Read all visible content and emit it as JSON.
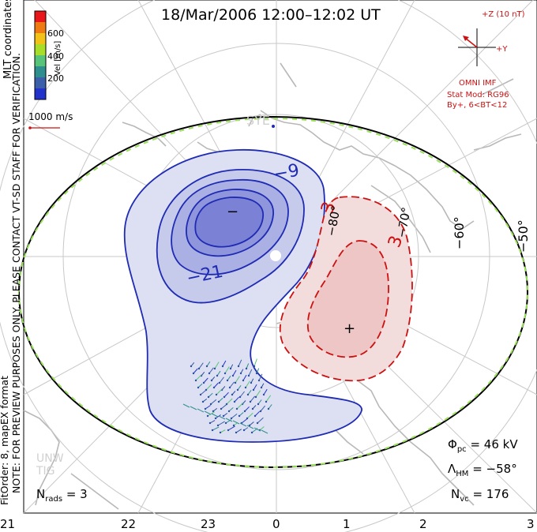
{
  "title": "18/Mar/2006 12:00–12:02 UT",
  "colorbar": {
    "label": "Vel [m/s]",
    "ticks": [
      "600",
      "400",
      "200"
    ],
    "colors": [
      "#e8161a",
      "#f07a12",
      "#f2c218",
      "#a8dd2a",
      "#58c47a",
      "#2f8f8f",
      "#3b5fa8",
      "#2233cc"
    ]
  },
  "coords_label": "MLT coordinates",
  "vector_scale_label": "1000 m/s",
  "imf": {
    "axis_z": "+Z (10 nT)",
    "axis_y": "+Y",
    "label": "OMNI IMF",
    "stat_mod_1": "Stat Mod: RG96",
    "stat_mod_2": "By+, 6<BT<12"
  },
  "side_note_line1": "NOTE: FOR PREVIEW PURPOSES ONLY. PLEASE CONTACT VT-SD STAFF FOR VERIFICATION.",
  "side_note_line2": "FitOrder: 8, mapEX format",
  "watermark": "UNW TIG",
  "stats": {
    "phi_pc": "Φ",
    "phi_pc_sub": "pc",
    "phi_pc_value": "= 46 kV",
    "lambda_hm": "Λ",
    "lambda_hm_sub": "HM",
    "lambda_hm_value": "= −58°",
    "n_vc": "N",
    "n_vc_sub": "vc",
    "n_vc_value": "= 176",
    "n_rads": "N",
    "n_rads_sub": "rads",
    "n_rads_value": "= 3"
  },
  "latitude_labels": [
    "−80°",
    "−70°",
    "−60°",
    "−50°"
  ],
  "mlt_labels": [
    "21",
    "22",
    "23",
    "0",
    "1",
    "2",
    "3"
  ],
  "contours": {
    "negative_labels": [
      "−9",
      "−21"
    ],
    "positive_labels": [
      "3",
      "3"
    ],
    "min_marker": "−",
    "max_marker": "+",
    "negative_color": "#1f2bb3",
    "positive_color": "#cc1111"
  },
  "station_label": "SYE"
}
